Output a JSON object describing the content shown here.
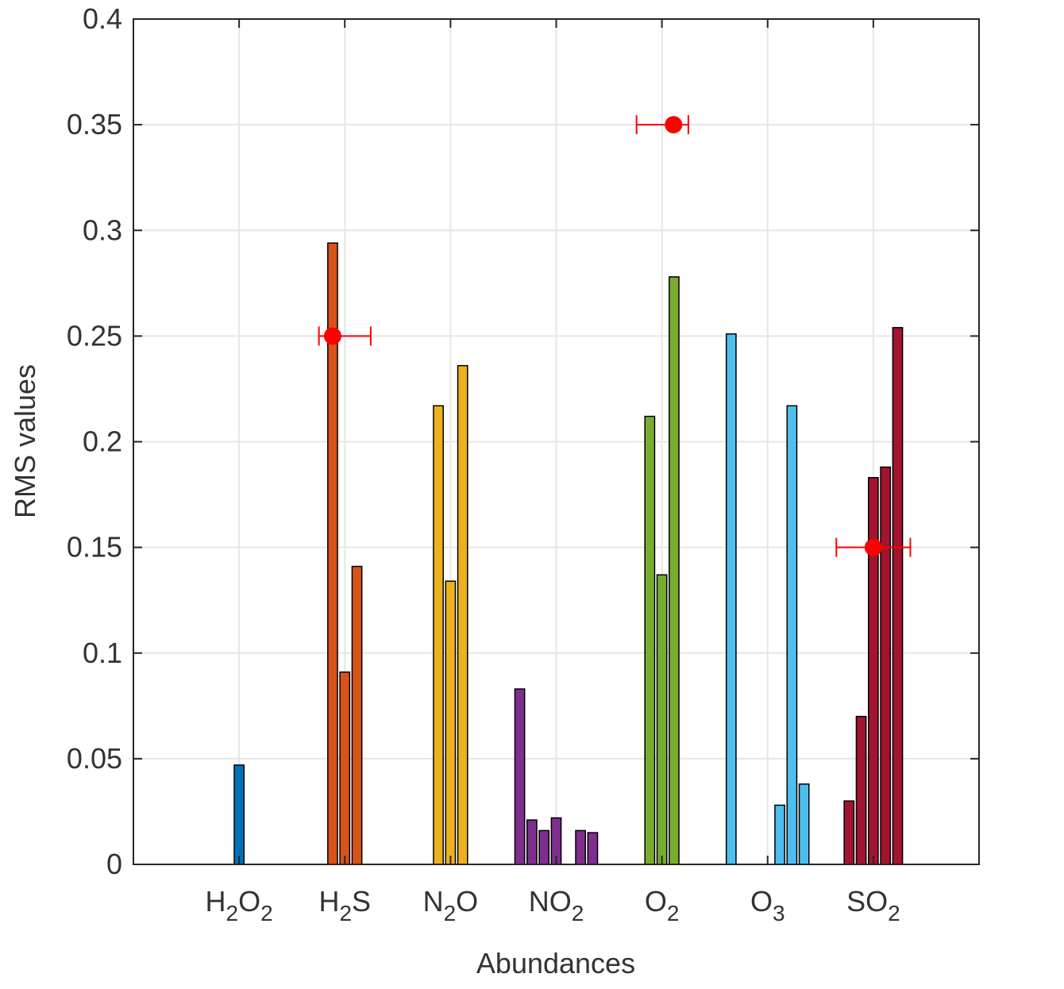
{
  "chart_data": {
    "type": "bar",
    "x_label": "Abundances",
    "y_label": "RMS values",
    "categories": [
      "H2O2",
      "H2S",
      "N2O",
      "NO2",
      "O2",
      "O3",
      "SO2"
    ],
    "colors": [
      "#0072bd",
      "#d95319",
      "#edb120",
      "#7e2f8e",
      "#77ac30",
      "#4dbeee",
      "#a2142f"
    ],
    "values": [
      [
        0,
        0,
        0,
        0.047,
        0,
        0,
        0
      ],
      [
        0,
        0,
        0.294,
        0.091,
        0.141,
        0,
        0
      ],
      [
        0,
        0,
        0.217,
        0.134,
        0.236,
        0,
        0
      ],
      [
        0.083,
        0.021,
        0.016,
        0.022,
        0,
        0.016,
        0.015
      ],
      [
        0,
        0,
        0.212,
        0.137,
        0.278,
        0,
        0
      ],
      [
        0.251,
        0,
        0,
        0,
        0.028,
        0.217,
        0.038
      ],
      [
        0,
        0.03,
        0.07,
        0.183,
        0.188,
        0.254,
        0
      ]
    ],
    "errorbars": [
      {
        "x": 1.885,
        "y": 0.25,
        "xneg": 0.13,
        "xpos": 0.36
      },
      {
        "x": 5.11,
        "y": 0.35,
        "xneg": 0.35,
        "xpos": 0.14
      },
      {
        "x": 7.0,
        "y": 0.15,
        "xneg": 0.35,
        "xpos": 0.35
      }
    ],
    "errorbar_color": "#ff0000",
    "xlim": [
      0,
      8
    ],
    "ylim": [
      0,
      0.4
    ],
    "yticks": [
      0,
      0.05,
      0.1,
      0.15,
      0.2,
      0.25,
      0.3,
      0.35,
      0.4
    ],
    "grid": true
  }
}
